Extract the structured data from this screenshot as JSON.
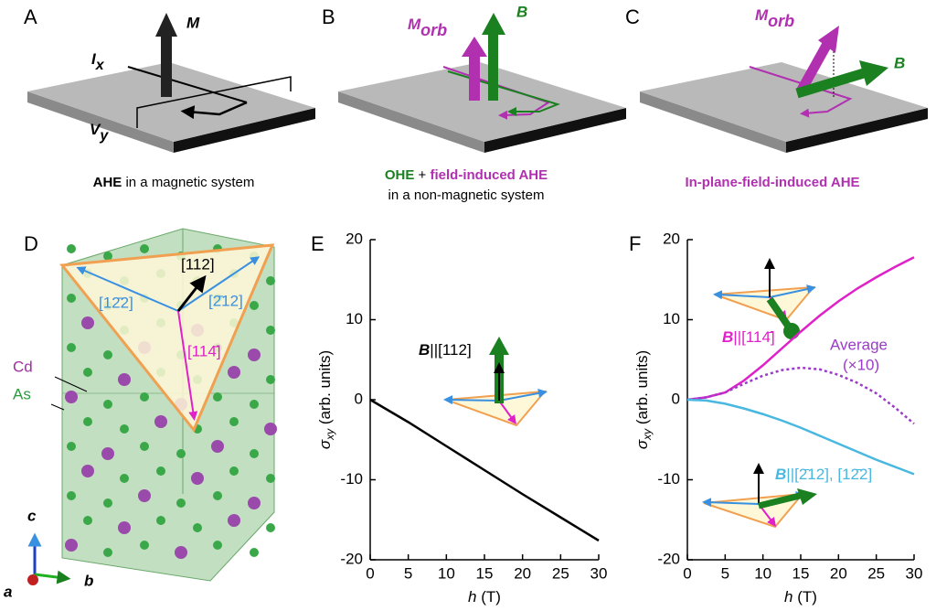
{
  "panels": [
    "A",
    "B",
    "C",
    "D",
    "E",
    "F"
  ],
  "panel_a": {
    "m": "M",
    "i": "I",
    "i_sub": "x",
    "v": "V",
    "v_sub": "y",
    "caption_bold": "AHE",
    "caption_rest": " in a magnetic system"
  },
  "panel_b": {
    "m": "M",
    "m_sub": "orb",
    "b": "B",
    "caption_ohe": "OHE",
    "caption_plus": " + ",
    "caption_field": "field-induced AHE",
    "caption_line2": "in a non-magnetic system"
  },
  "panel_c": {
    "m": "M",
    "m_sub": "orb",
    "b": "B",
    "caption": "In-plane-field-induced AHE"
  },
  "panel_d": {
    "dir_112": "[112]",
    "dir_1m22": "[12̄2]",
    "dir_m212": "[2̄12]",
    "dir_11m4": "[114̄]",
    "cd": "Cd",
    "as": "As",
    "axis_a": "a",
    "axis_b": "b",
    "axis_c": "c"
  },
  "chart_data": [
    {
      "type": "line",
      "xlabel": "h",
      "xlabel_unit": " (T)",
      "ylabel": "σ",
      "ylabel_sub": "xy",
      "ylabel_rest": " (arb. units)",
      "x": [
        0,
        5,
        10,
        15,
        20,
        25,
        30
      ],
      "series": [
        {
          "color": "#000000",
          "style": "solid",
          "values": [
            0,
            -2.8,
            -5.8,
            -8.8,
            -11.8,
            -14.7,
            -17.6
          ]
        }
      ],
      "xlim": [
        0,
        30
      ],
      "xticks": [
        0,
        5,
        10,
        15,
        20,
        25,
        30
      ],
      "ylim": [
        -20,
        20
      ],
      "yticks": [
        -20,
        -10,
        0,
        10,
        20
      ],
      "annotations": [
        {
          "symbol": "B",
          "text": "||[112]"
        }
      ]
    },
    {
      "type": "line",
      "xlabel": "h",
      "xlabel_unit": " (T)",
      "ylabel": "σ",
      "ylabel_sub": "xy",
      "ylabel_rest": " (arb. units)",
      "x": [
        0,
        2.5,
        5,
        7.5,
        10,
        12.5,
        15,
        17.5,
        20,
        22.5,
        25,
        27.5,
        30
      ],
      "series": [
        {
          "color": "#e020c8",
          "style": "solid",
          "values": [
            0,
            0.3,
            0.9,
            2.4,
            4.3,
            6.4,
            8.5,
            10.5,
            12.3,
            13.9,
            15.3,
            16.6,
            17.8
          ]
        },
        {
          "color": "#9a3cc8",
          "style": "dotted",
          "values": [
            0,
            0.3,
            0.9,
            2,
            3,
            3.7,
            4,
            3.8,
            3.1,
            2.1,
            0.8,
            -1,
            -3
          ]
        },
        {
          "color": "#48b8e0",
          "style": "solid",
          "values": [
            0,
            -0.1,
            -0.5,
            -1.1,
            -1.8,
            -2.6,
            -3.5,
            -4.5,
            -5.5,
            -6.5,
            -7.5,
            -8.4,
            -9.3
          ]
        }
      ],
      "xlim": [
        0,
        30
      ],
      "xticks": [
        0,
        5,
        10,
        15,
        20,
        25,
        30
      ],
      "ylim": [
        -20,
        20
      ],
      "yticks": [
        -20,
        -10,
        0,
        10,
        20
      ],
      "annotations": [
        {
          "symbol": "B",
          "text": "||[114̄]"
        },
        {
          "text": "Average"
        },
        {
          "text": "(×10)"
        },
        {
          "symbol": "B",
          "text": "||[2̄12], [12̄2]"
        }
      ]
    }
  ]
}
